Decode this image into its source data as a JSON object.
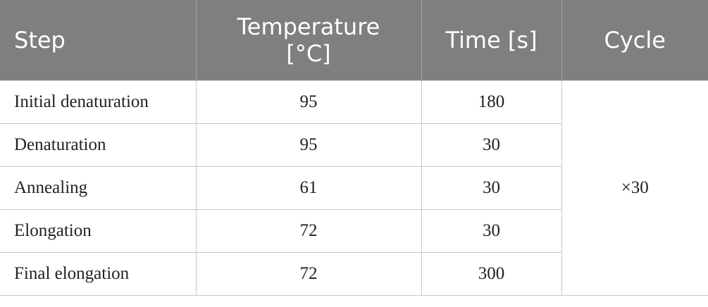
{
  "table": {
    "header": [
      "Step",
      "Temperature [°C]",
      "Time [s]",
      "Cycle"
    ],
    "rows": [
      [
        "Initial denaturation",
        95,
        180
      ],
      [
        "Denaturation",
        95,
        30
      ],
      [
        "Annealing",
        61,
        30
      ],
      [
        "Elongation",
        72,
        30
      ],
      [
        "Final elongation",
        72,
        300
      ]
    ],
    "cycle": "×30"
  }
}
